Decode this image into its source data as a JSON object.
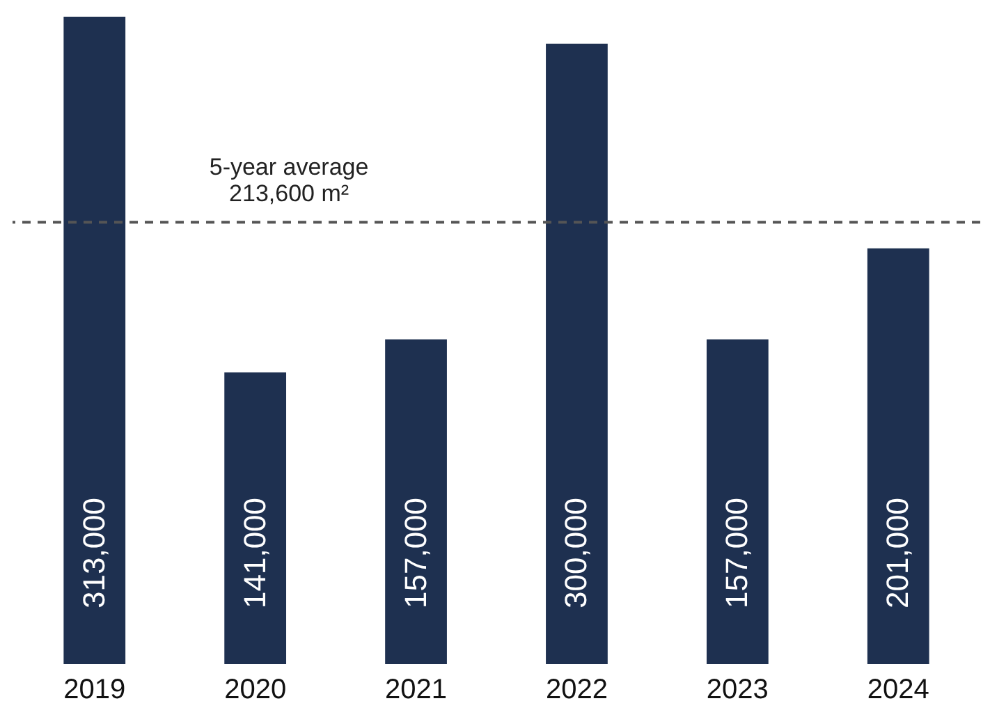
{
  "chart_data": {
    "type": "bar",
    "categories": [
      "2019",
      "2020",
      "2021",
      "2022",
      "2023",
      "2024"
    ],
    "values": [
      313000,
      141000,
      157000,
      300000,
      157000,
      201000
    ],
    "value_labels": [
      "313,000",
      "141,000",
      "157,000",
      "300,000",
      "157,000",
      "201,000"
    ],
    "color": "#1e3050",
    "ref_lines": [
      {
        "axis": "y",
        "value": 213600,
        "label": "5-year average\n213,600 m²",
        "color": "#555555",
        "line_style": "dashed"
      }
    ]
  }
}
